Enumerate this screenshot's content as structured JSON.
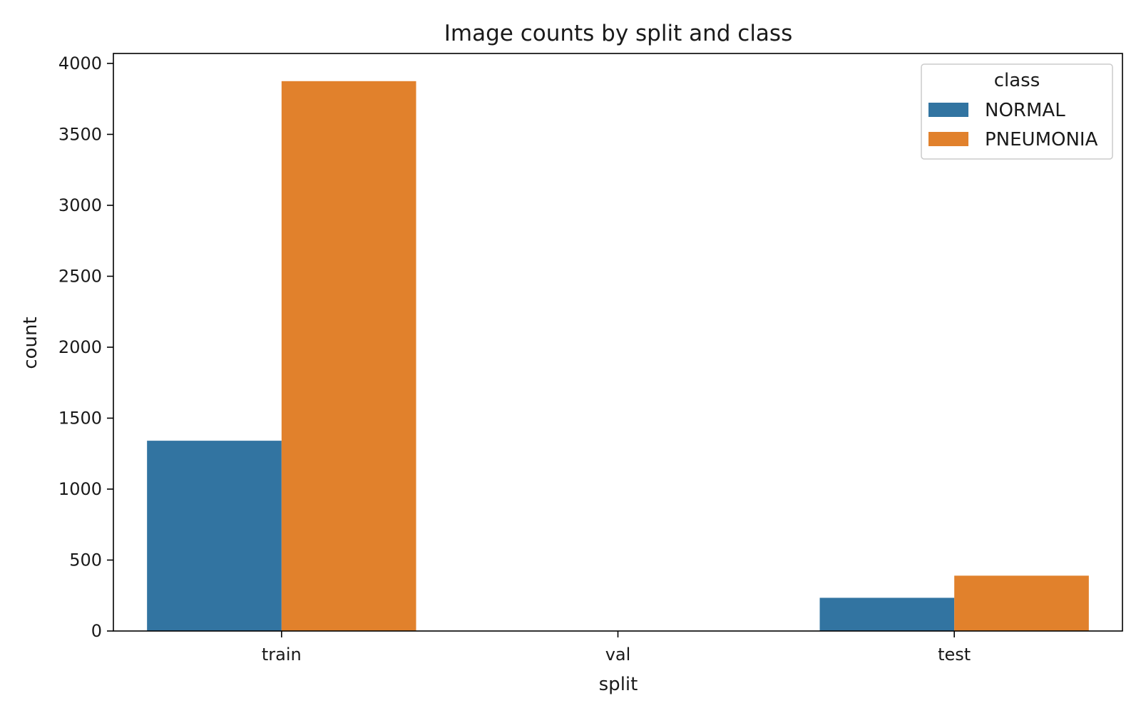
{
  "chart_data": {
    "type": "bar",
    "title": "Image counts by split and class",
    "xlabel": "split",
    "ylabel": "count",
    "categories": [
      "train",
      "val",
      "test"
    ],
    "series": [
      {
        "name": "NORMAL",
        "values": [
          1341,
          0,
          234
        ],
        "color": "#3274a1"
      },
      {
        "name": "PNEUMONIA",
        "values": [
          3875,
          0,
          390
        ],
        "color": "#e1812c"
      }
    ],
    "ylim": [
      0,
      4070
    ],
    "yticks": [
      0,
      500,
      1000,
      1500,
      2000,
      2500,
      3000,
      3500,
      4000
    ],
    "legend": {
      "title": "class",
      "placement": "top-right"
    },
    "grid": false
  }
}
